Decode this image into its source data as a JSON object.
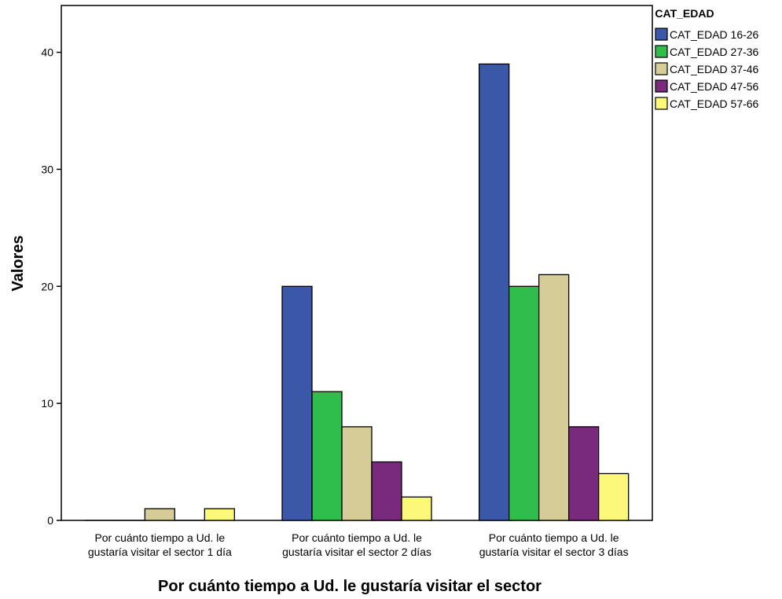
{
  "chart_data": {
    "type": "bar",
    "title": "",
    "xlabel": "Por cuánto tiempo  a Ud. le  gustaría visitar el sector",
    "ylabel": "Valores",
    "ylim": [
      0,
      44
    ],
    "yticks": [
      0,
      10,
      20,
      30,
      40
    ],
    "grid": false,
    "legend_position": "right",
    "legend_title": "CAT_EDAD",
    "categories": [
      [
        "Por cuánto tiempo  a Ud. le",
        "gustaría visitar el sector  1 día"
      ],
      [
        "Por cuánto tiempo  a Ud. le",
        "gustaría visitar el sector  2 días"
      ],
      [
        "Por cuánto tiempo  a Ud. le",
        "gustaría visitar el sector  3 días"
      ]
    ],
    "series": [
      {
        "name": "CAT_EDAD 16-26",
        "color": "#3b57a8",
        "values": [
          0,
          20,
          39
        ]
      },
      {
        "name": "CAT_EDAD 27-36",
        "color": "#2fbe4b",
        "values": [
          0,
          11,
          20
        ]
      },
      {
        "name": "CAT_EDAD 37-46",
        "color": "#d6cc98",
        "values": [
          1,
          8,
          21
        ]
      },
      {
        "name": "CAT_EDAD 47-56",
        "color": "#7a2a7c",
        "values": [
          0,
          5,
          8
        ]
      },
      {
        "name": "CAT_EDAD 57-66",
        "color": "#fbf87a",
        "values": [
          1,
          2,
          4
        ]
      }
    ]
  }
}
